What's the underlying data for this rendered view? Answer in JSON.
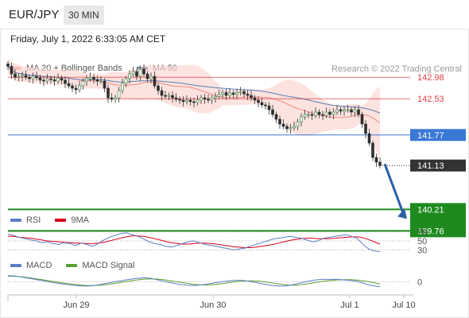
{
  "header": {
    "pair": "EUR/JPY",
    "timeframe": "30 MIN"
  },
  "date_line": "Friday, July 1, 2022 6:33:05 AM CET",
  "credit": "Research © 2022 Trading Central",
  "legend_main": [
    {
      "label": "MA 20 + Bollinger Bands",
      "color": "#f08a80"
    },
    {
      "label": "MA 50",
      "color": "#2f5b95"
    }
  ],
  "legend_rsi": [
    {
      "label": "RSI",
      "color": "#5a7fc4"
    },
    {
      "label": "9MA",
      "color": "#d9001b"
    }
  ],
  "legend_macd": [
    {
      "label": "MACD",
      "color": "#5a7fc4"
    },
    {
      "label": "MACD Signal",
      "color": "#5aa02c"
    }
  ],
  "colors": {
    "resistance": "#e34040",
    "pivot": "#3a78d6",
    "support": "#1e8a1e",
    "current": "#333333",
    "arrow": "#2b5fa6",
    "bollinger_fill": "#fbd7d3"
  },
  "chart_data": [
    {
      "type": "candlestick",
      "title": "EUR/JPY",
      "timeframe": "30 MIN",
      "x_tick_labels": [
        "Jun 29",
        "Jun 30",
        "Jul 1",
        "Jul 10"
      ],
      "ylim": [
        139.6,
        143.6
      ],
      "closes": [
        143.21,
        143.05,
        142.98,
        143.0,
        143.02,
        142.98,
        142.95,
        143.0,
        142.97,
        142.92,
        142.9,
        142.95,
        142.93,
        142.9,
        142.96,
        142.92,
        142.85,
        142.8,
        142.75,
        142.72,
        142.8,
        142.9,
        142.95,
        142.98,
        142.93,
        142.9,
        142.9,
        142.75,
        142.55,
        142.52,
        142.55,
        142.7,
        142.85,
        142.95,
        143.05,
        143.1,
        143.0,
        143.15,
        143.05,
        142.95,
        143.0,
        142.8,
        142.7,
        142.6,
        142.58,
        142.6,
        142.55,
        142.52,
        142.5,
        142.47,
        142.5,
        142.47,
        142.45,
        142.5,
        142.55,
        142.52,
        142.5,
        142.55,
        142.58,
        142.62,
        142.66,
        142.6,
        142.65,
        142.62,
        142.66,
        142.68,
        142.63,
        142.6,
        142.55,
        142.5,
        142.45,
        142.4,
        142.38,
        142.3,
        142.2,
        142.1,
        142.0,
        141.95,
        141.9,
        141.92,
        141.95,
        142.05,
        142.15,
        142.2,
        142.2,
        142.18,
        142.25,
        142.2,
        142.18,
        142.25,
        142.2,
        142.25,
        142.3,
        142.27,
        142.3,
        142.3,
        142.25,
        142.3,
        142.2,
        142.0,
        141.8,
        141.6,
        141.3,
        141.2,
        141.13
      ],
      "levels": [
        {
          "label": "142.98",
          "value": 142.98,
          "kind": "resistance"
        },
        {
          "label": "142.53",
          "value": 142.53,
          "kind": "resistance"
        },
        {
          "label": "141.77",
          "value": 141.77,
          "kind": "pivot"
        },
        {
          "label": "141.13",
          "value": 141.13,
          "kind": "current"
        },
        {
          "label": "140.21",
          "value": 140.21,
          "kind": "support"
        },
        {
          "label": "139.76",
          "value": 139.76,
          "kind": "support"
        }
      ],
      "forecast_arrow": {
        "from": 141.13,
        "to": 140.21
      }
    },
    {
      "type": "line",
      "title": "RSI",
      "levels": [
        {
          "label": "70",
          "value": 70
        },
        {
          "label": "50",
          "value": 50
        },
        {
          "label": "30",
          "value": 30
        }
      ],
      "ylim": [
        20,
        80
      ],
      "series": [
        {
          "name": "RSI",
          "values": [
            65,
            62,
            58,
            55,
            52,
            50,
            46,
            48,
            44,
            42,
            46,
            44,
            40,
            45,
            42,
            38,
            44,
            52,
            58,
            62,
            66,
            68,
            64,
            60,
            55,
            48,
            44,
            42,
            38,
            36,
            40,
            44,
            48,
            50,
            46,
            42,
            40,
            38,
            35,
            33,
            30,
            32,
            34,
            38,
            42,
            46,
            50,
            54,
            56,
            58,
            60,
            58,
            56,
            52,
            48,
            50,
            56,
            58,
            60,
            62,
            64,
            60,
            55,
            42,
            32,
            28,
            26
          ]
        },
        {
          "name": "9MA",
          "values": [
            60,
            60,
            58,
            57,
            56,
            54,
            52,
            50,
            49,
            48,
            47,
            46,
            45,
            45,
            44,
            44,
            45,
            47,
            50,
            53,
            56,
            59,
            61,
            61,
            60,
            58,
            55,
            52,
            49,
            46,
            44,
            43,
            43,
            44,
            45,
            45,
            44,
            43,
            41,
            39,
            37,
            36,
            35,
            35,
            36,
            38,
            40,
            42,
            45,
            48,
            51,
            53,
            55,
            56,
            56,
            55,
            55,
            55,
            56,
            57,
            58,
            59,
            59,
            57,
            53,
            48,
            43
          ]
        }
      ]
    },
    {
      "type": "line",
      "title": "MACD",
      "levels": [
        {
          "label": "0",
          "value": 0
        }
      ],
      "ylim": [
        -0.45,
        0.35
      ],
      "series": [
        {
          "name": "MACD",
          "values": [
            0.22,
            0.2,
            0.16,
            0.12,
            0.07,
            0.03,
            -0.02,
            -0.06,
            -0.1,
            -0.13,
            -0.15,
            -0.16,
            -0.14,
            -0.1,
            -0.05,
            0.0,
            0.04,
            0.08,
            0.12,
            0.14,
            0.12,
            0.06,
            0.0,
            -0.05,
            -0.1,
            -0.13,
            -0.14,
            -0.12,
            -0.08,
            -0.04,
            0.0,
            0.03,
            0.05,
            0.04,
            0.0,
            -0.05,
            -0.1,
            -0.14,
            -0.16,
            -0.15,
            -0.1,
            -0.04,
            0.02,
            0.06,
            0.08,
            0.08,
            0.08,
            0.06,
            0.04,
            0.0,
            -0.08,
            -0.15,
            -0.18
          ]
        },
        {
          "name": "MACD Signal",
          "values": [
            0.2,
            0.19,
            0.17,
            0.14,
            0.1,
            0.06,
            0.02,
            -0.02,
            -0.06,
            -0.09,
            -0.12,
            -0.14,
            -0.14,
            -0.13,
            -0.1,
            -0.06,
            -0.02,
            0.02,
            0.06,
            0.09,
            0.1,
            0.09,
            0.06,
            0.02,
            -0.02,
            -0.06,
            -0.1,
            -0.12,
            -0.12,
            -0.1,
            -0.07,
            -0.03,
            0.0,
            0.02,
            0.03,
            0.02,
            -0.01,
            -0.05,
            -0.09,
            -0.12,
            -0.13,
            -0.11,
            -0.07,
            -0.03,
            0.01,
            0.04,
            0.06,
            0.07,
            0.07,
            0.05,
            0.02,
            -0.03,
            -0.09
          ]
        }
      ]
    }
  ]
}
